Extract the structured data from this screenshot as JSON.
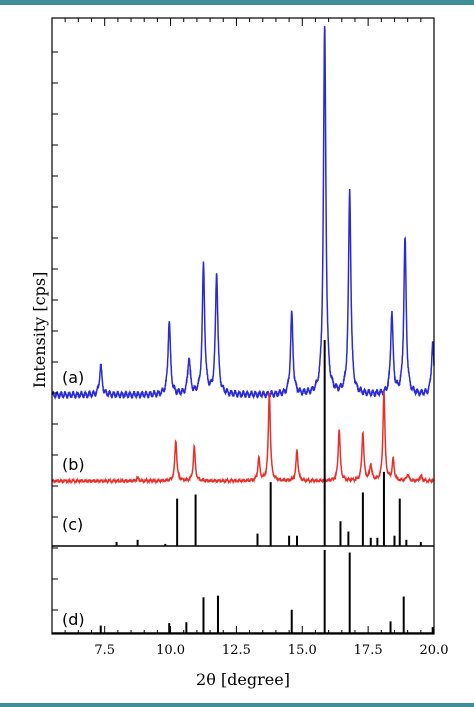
{
  "chart_data": {
    "type": "line",
    "xlabel": "2θ [degree]",
    "ylabel": "Intensity [cps]",
    "xlim": [
      5.5,
      20.0
    ],
    "x_ticks": [
      7.5,
      10.0,
      12.5,
      15.0,
      17.5,
      20.0
    ],
    "x_tick_labels": [
      "7.5",
      "10.0",
      "12.5",
      "15.0",
      "17.5",
      "20.0"
    ],
    "grid": false,
    "series": [
      {
        "name": "(a)",
        "color": "#2a2ad6",
        "style": "measured",
        "baseline": 0,
        "peaks": [
          [
            7.35,
            0.08
          ],
          [
            9.95,
            0.2
          ],
          [
            10.7,
            0.1
          ],
          [
            11.25,
            0.35
          ],
          [
            11.75,
            0.33
          ],
          [
            14.6,
            0.22
          ],
          [
            15.85,
            1.0
          ],
          [
            16.8,
            0.55
          ],
          [
            18.4,
            0.22
          ],
          [
            18.9,
            0.42
          ],
          [
            19.95,
            0.14
          ]
        ]
      },
      {
        "name": "(b)",
        "color": "#e8302a",
        "style": "measured",
        "baseline": 0,
        "peaks": [
          [
            8.75,
            0.02
          ],
          [
            10.2,
            0.25
          ],
          [
            10.9,
            0.21
          ],
          [
            13.35,
            0.14
          ],
          [
            13.75,
            0.55
          ],
          [
            14.8,
            0.19
          ],
          [
            16.4,
            0.32
          ],
          [
            17.3,
            0.3
          ],
          [
            17.6,
            0.1
          ],
          [
            18.1,
            0.55
          ],
          [
            18.45,
            0.13
          ],
          [
            19.0,
            0.04
          ],
          [
            19.5,
            0.03
          ]
        ]
      },
      {
        "name": "(c)",
        "color": "#000000",
        "style": "sticks",
        "baseline": 0,
        "peaks": [
          [
            7.95,
            0.02
          ],
          [
            8.75,
            0.03
          ],
          [
            9.8,
            0.01
          ],
          [
            10.25,
            0.23
          ],
          [
            10.95,
            0.25
          ],
          [
            13.3,
            0.06
          ],
          [
            13.8,
            0.31
          ],
          [
            14.5,
            0.05
          ],
          [
            14.8,
            0.05
          ],
          [
            15.85,
            1.0
          ],
          [
            16.45,
            0.12
          ],
          [
            16.75,
            0.07
          ],
          [
            17.3,
            0.26
          ],
          [
            17.6,
            0.04
          ],
          [
            17.85,
            0.04
          ],
          [
            18.1,
            0.36
          ],
          [
            18.5,
            0.05
          ],
          [
            18.7,
            0.23
          ],
          [
            18.95,
            0.03
          ],
          [
            19.5,
            0.02
          ]
        ]
      },
      {
        "name": "(d)",
        "color": "#000000",
        "style": "sticks",
        "baseline": 0,
        "peaks": [
          [
            7.35,
            0.09
          ],
          [
            9.95,
            0.12
          ],
          [
            10.6,
            0.13
          ],
          [
            11.25,
            0.43
          ],
          [
            11.8,
            0.45
          ],
          [
            14.6,
            0.28
          ],
          [
            15.85,
            1.0
          ],
          [
            16.8,
            0.97
          ],
          [
            18.35,
            0.14
          ],
          [
            18.85,
            0.44
          ],
          [
            19.95,
            0.07
          ]
        ]
      }
    ]
  }
}
